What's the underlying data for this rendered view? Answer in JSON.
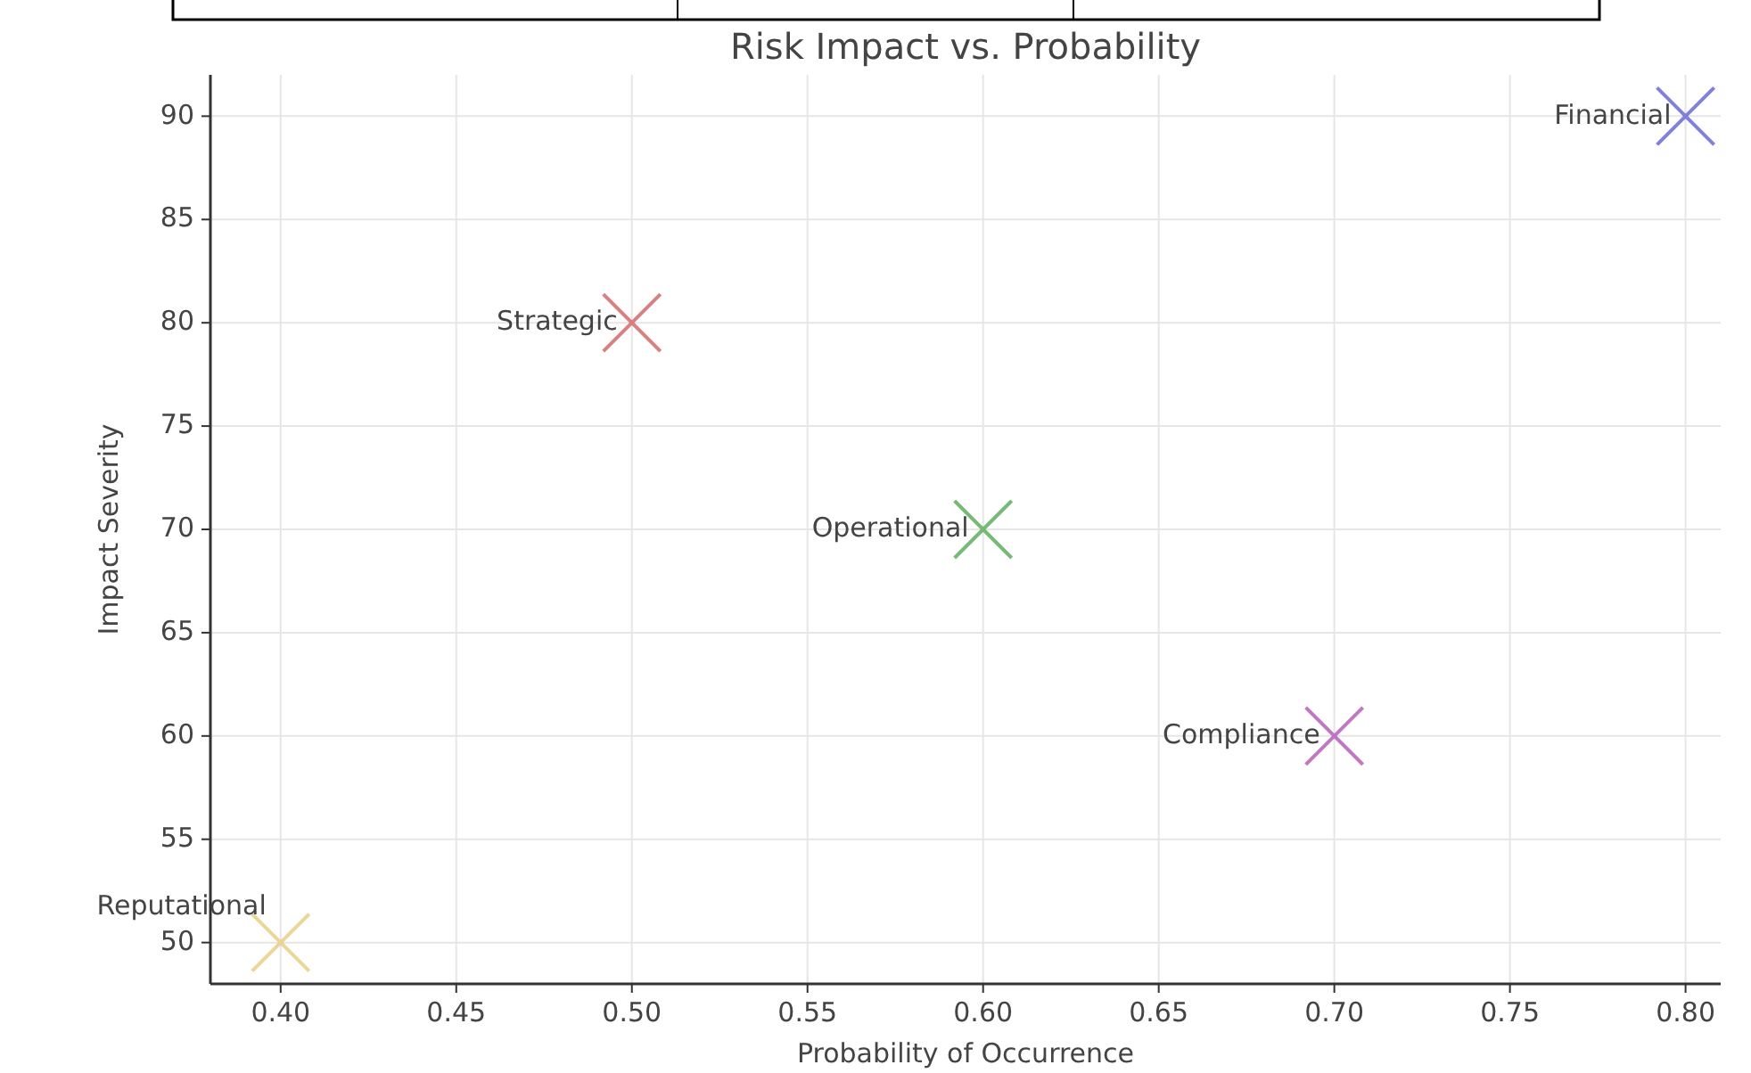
{
  "chart_data": {
    "type": "scatter",
    "title": "Risk Impact vs. Probability",
    "xlabel": "Probability of Occurrence",
    "ylabel": "Impact Severity",
    "xlim": [
      0.38,
      0.81
    ],
    "xticks": [
      {
        "value": 0.4,
        "label": "0.40"
      },
      {
        "value": 0.45,
        "label": "0.45"
      },
      {
        "value": 0.5,
        "label": "0.50"
      },
      {
        "value": 0.55,
        "label": "0.55"
      },
      {
        "value": 0.6,
        "label": "0.60"
      },
      {
        "value": 0.65,
        "label": "0.65"
      },
      {
        "value": 0.7,
        "label": "0.70"
      },
      {
        "value": 0.75,
        "label": "0.75"
      },
      {
        "value": 0.8,
        "label": "0.80"
      }
    ],
    "ylim": [
      48,
      92
    ],
    "yticks": [
      50,
      55,
      60,
      65,
      70,
      75,
      80,
      85,
      90
    ],
    "grid": true,
    "marker": "cross",
    "series": [
      {
        "name": "Financial",
        "color": "#6b6bd6",
        "x": [
          0.8
        ],
        "values": [
          90
        ]
      },
      {
        "name": "Strategic",
        "color": "#d46a6a",
        "x": [
          0.5
        ],
        "values": [
          80
        ]
      },
      {
        "name": "Operational",
        "color": "#5fae5f",
        "x": [
          0.6
        ],
        "values": [
          70
        ]
      },
      {
        "name": "Compliance",
        "color": "#b65fb6",
        "x": [
          0.7
        ],
        "values": [
          60
        ]
      },
      {
        "name": "Reputational",
        "color": "#e8cf85",
        "x": [
          0.4
        ],
        "values": [
          50
        ]
      }
    ]
  }
}
